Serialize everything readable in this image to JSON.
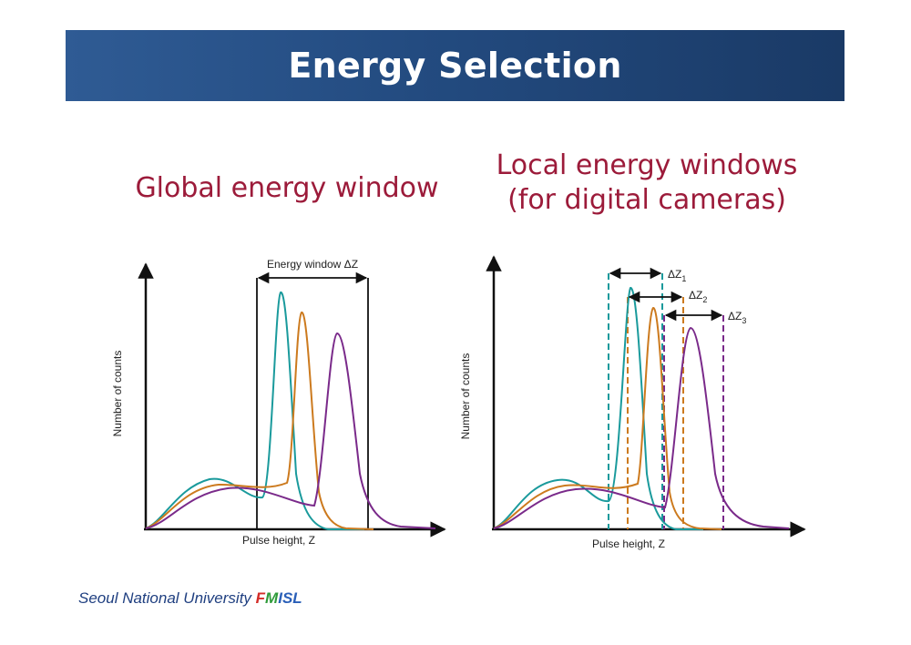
{
  "slide": {
    "title": "Energy Selection",
    "subtitle_left": "Global energy window",
    "subtitle_right_line1": "Local energy windows",
    "subtitle_right_line2": "(for digital cameras)"
  },
  "diagram_left": {
    "ylabel": "Number of counts",
    "xlabel": "Pulse height, Z",
    "window_label": "Energy window ΔZ"
  },
  "diagram_right": {
    "ylabel": "Number of counts",
    "xlabel": "Pulse height, Z",
    "windows": [
      {
        "label": "ΔZ",
        "sub": "1",
        "color": "#1a9a9c"
      },
      {
        "label": "ΔZ",
        "sub": "2",
        "color": "#cc7a1e"
      },
      {
        "label": "ΔZ",
        "sub": "3",
        "color": "#7a2a8a"
      }
    ]
  },
  "colors": {
    "teal": "#1a9a9c",
    "orange": "#cc7a1e",
    "purple": "#7a2a8a"
  },
  "footer": {
    "university": "Seoul National University",
    "lab_f": "F",
    "lab_m": "M",
    "lab_i": "I",
    "lab_sl": "SL"
  }
}
